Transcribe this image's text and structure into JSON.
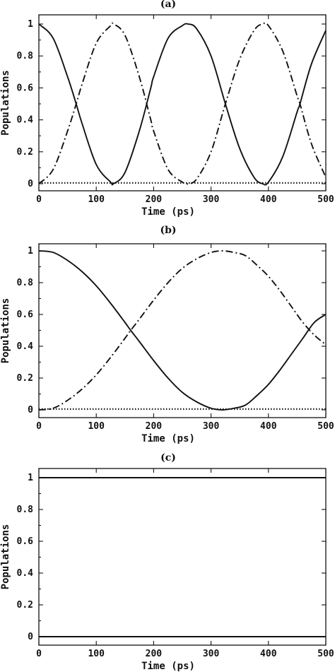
{
  "chart_data": [
    {
      "type": "line",
      "title": "(a)",
      "xlabel": "Time (ps)",
      "ylabel": "Populations",
      "xlim": [
        0,
        500
      ],
      "ylim": [
        0,
        1
      ],
      "xticks": [
        "0",
        "100",
        "200",
        "300",
        "400",
        "500"
      ],
      "yticks": [
        "0",
        "0.2",
        "0.4",
        "0.6",
        "0.8",
        "1"
      ],
      "grid": false,
      "series": [
        {
          "style": "solid",
          "color": "#111111",
          "x": [
            0,
            25,
            50,
            65,
            75,
            100,
            125,
            130,
            150,
            175,
            195,
            200,
            225,
            250,
            260,
            275,
            300,
            325,
            350,
            375,
            390,
            400,
            425,
            450,
            455,
            475,
            500
          ],
          "y": [
            1.0,
            0.91,
            0.67,
            0.5,
            0.38,
            0.12,
            0.01,
            0.0,
            0.07,
            0.33,
            0.6,
            0.67,
            0.91,
            0.99,
            1.0,
            0.97,
            0.8,
            0.5,
            0.22,
            0.04,
            0.0,
            0.01,
            0.17,
            0.45,
            0.5,
            0.75,
            0.96
          ]
        },
        {
          "style": "dash-dot",
          "color": "#111111",
          "x": [
            0,
            25,
            50,
            65,
            75,
            100,
            125,
            130,
            150,
            175,
            195,
            200,
            225,
            250,
            260,
            275,
            300,
            325,
            350,
            375,
            390,
            400,
            425,
            450,
            455,
            475,
            500
          ],
          "y": [
            0.0,
            0.09,
            0.33,
            0.5,
            0.62,
            0.88,
            0.99,
            1.0,
            0.93,
            0.67,
            0.4,
            0.33,
            0.09,
            0.01,
            0.0,
            0.03,
            0.2,
            0.5,
            0.78,
            0.96,
            1.0,
            0.99,
            0.83,
            0.55,
            0.5,
            0.25,
            0.04
          ]
        },
        {
          "style": "dotted",
          "color": "#111111",
          "x": [
            0,
            500
          ],
          "y": [
            0.005,
            0.005
          ]
        }
      ]
    },
    {
      "type": "line",
      "title": "(b)",
      "xlabel": "Time (ps)",
      "ylabel": "Populations",
      "xlim": [
        0,
        500
      ],
      "ylim": [
        0,
        1
      ],
      "xticks": [
        "0",
        "100",
        "200",
        "300",
        "400",
        "500"
      ],
      "yticks": [
        "0",
        "0.2",
        "0.4",
        "0.6",
        "0.8",
        "1"
      ],
      "grid": false,
      "series": [
        {
          "style": "solid",
          "color": "#111111",
          "x": [
            0,
            25,
            50,
            75,
            100,
            125,
            150,
            160,
            175,
            200,
            225,
            250,
            275,
            300,
            320,
            340,
            360,
            380,
            400,
            420,
            440,
            460,
            480,
            500
          ],
          "y": [
            1.0,
            0.99,
            0.94,
            0.87,
            0.78,
            0.67,
            0.55,
            0.5,
            0.43,
            0.31,
            0.2,
            0.11,
            0.05,
            0.01,
            0.0,
            0.01,
            0.03,
            0.09,
            0.16,
            0.25,
            0.35,
            0.45,
            0.55,
            0.6
          ]
        },
        {
          "style": "dash-dot",
          "color": "#111111",
          "x": [
            0,
            25,
            50,
            75,
            100,
            125,
            150,
            160,
            175,
            200,
            225,
            250,
            275,
            300,
            320,
            340,
            360,
            380,
            400,
            420,
            440,
            460,
            480,
            500
          ],
          "y": [
            0.0,
            0.01,
            0.06,
            0.13,
            0.22,
            0.33,
            0.45,
            0.5,
            0.57,
            0.69,
            0.8,
            0.89,
            0.95,
            0.99,
            1.0,
            0.99,
            0.97,
            0.91,
            0.84,
            0.75,
            0.65,
            0.55,
            0.47,
            0.41
          ]
        },
        {
          "style": "dotted",
          "color": "#111111",
          "x": [
            0,
            500
          ],
          "y": [
            0.005,
            0.005
          ]
        }
      ]
    },
    {
      "type": "line",
      "title": "(c)",
      "xlabel": "Time (ps)",
      "ylabel": "Populations",
      "xlim": [
        0,
        500
      ],
      "ylim": [
        0,
        1
      ],
      "xticks": [
        "0",
        "100",
        "200",
        "300",
        "400",
        "500"
      ],
      "yticks": [
        "0",
        "0.2",
        "0.4",
        "0.6",
        "0.8",
        "1"
      ],
      "grid": false,
      "series": [
        {
          "style": "solid",
          "color": "#111111",
          "x": [
            0,
            500
          ],
          "y": [
            1.0,
            1.0
          ]
        },
        {
          "style": "solid",
          "color": "#111111",
          "x": [
            0,
            500
          ],
          "y": [
            0.0,
            0.0
          ]
        }
      ]
    }
  ]
}
